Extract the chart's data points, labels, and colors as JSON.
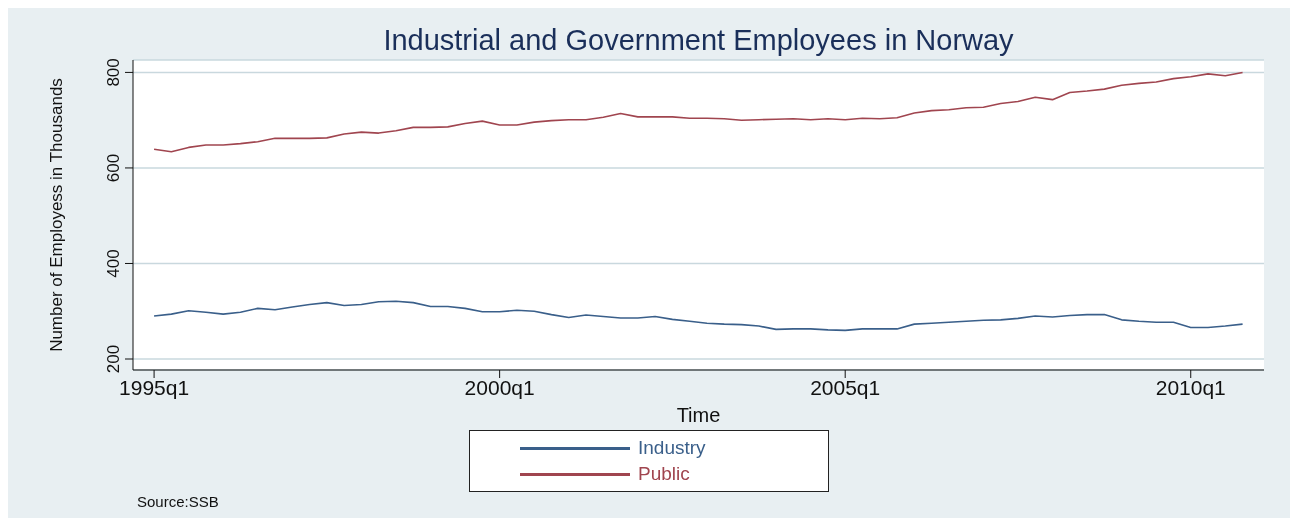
{
  "chart_data": {
    "type": "line",
    "title": "Industrial and Government Employees in Norway",
    "xlabel": "Time",
    "ylabel": "Number of Employess in Thousands",
    "categories": [
      "1995q1",
      null,
      null,
      null,
      null,
      null,
      null,
      null,
      null,
      null,
      null,
      null,
      null,
      null,
      null,
      null,
      null,
      null,
      null,
      null,
      "2000q1",
      null,
      null,
      null,
      null,
      null,
      null,
      null,
      null,
      null,
      null,
      null,
      null,
      null,
      null,
      null,
      null,
      null,
      null,
      null,
      "2005q1",
      null,
      null,
      null,
      null,
      null,
      null,
      null,
      null,
      null,
      null,
      null,
      null,
      null,
      null,
      null,
      null,
      null,
      null,
      null,
      "2010q1",
      null,
      null,
      null
    ],
    "series": [
      {
        "name": "Industry",
        "color": "#3a5f8a",
        "values": [
          290,
          294,
          301,
          298,
          294,
          298,
          306,
          303,
          309,
          314,
          318,
          312,
          314,
          320,
          321,
          318,
          310,
          310,
          306,
          299,
          299,
          302,
          300,
          293,
          287,
          292,
          289,
          286,
          286,
          289,
          283,
          279,
          275,
          273,
          272,
          269,
          262,
          263,
          263,
          261,
          260,
          263,
          263,
          263,
          273,
          275,
          277,
          279,
          281,
          282,
          285,
          290,
          288,
          291,
          293,
          293,
          282,
          279,
          277,
          277,
          266,
          266,
          269,
          273
        ]
      },
      {
        "name": "Public",
        "color": "#a0454f",
        "values": [
          639,
          634,
          643,
          648,
          648,
          651,
          655,
          662,
          662,
          662,
          663,
          671,
          675,
          673,
          678,
          685,
          685,
          686,
          693,
          698,
          690,
          690,
          696,
          699,
          701,
          701,
          706,
          714,
          707,
          707,
          707,
          704,
          704,
          703,
          700,
          701,
          702,
          703,
          701,
          703,
          701,
          704,
          703,
          705,
          715,
          720,
          722,
          726,
          727,
          735,
          739,
          748,
          743,
          758,
          761,
          765,
          773,
          777,
          780,
          787,
          791,
          797,
          793,
          800
        ]
      }
    ],
    "ylim": [
      177,
      826
    ],
    "yticks": [
      200,
      400,
      600,
      800
    ],
    "grid": "y",
    "legend": "bottom",
    "line_style": "solid",
    "marker": "none",
    "annotations": [
      "Source:SSB"
    ]
  }
}
